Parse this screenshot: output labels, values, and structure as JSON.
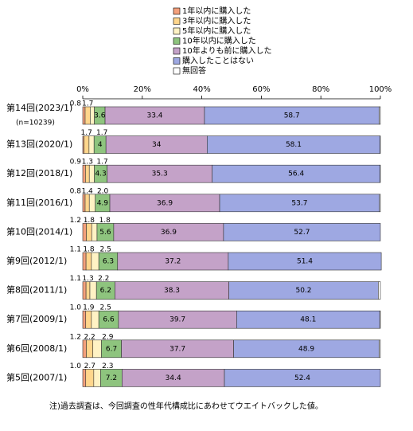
{
  "chart_data": {
    "type": "stacked-barh",
    "categories": [
      "第14回(2023/1)",
      "第13回(2020/1)",
      "第12回(2018/1)",
      "第11回(2016/1)",
      "第10回(2014/1)",
      "第9回(2012/1)",
      "第8回(2011/1)",
      "第7回(2009/1)",
      "第6回(2008/1)",
      "第5回(2007/1)"
    ],
    "sample_note": "(n=10239)",
    "series": [
      {
        "name": "1年以内に購入した",
        "color": "#f4a07c",
        "values": [
          0.8,
          0.4,
          0.9,
          0.8,
          1.2,
          1.1,
          1.1,
          1.0,
          1.2,
          1.0
        ],
        "value_labels": [
          "0.8",
          null,
          "0.9",
          "0.8",
          "1.2",
          "1.1",
          "1.1",
          "1.0",
          "1.2",
          "1.0"
        ]
      },
      {
        "name": "3年以内に購入した",
        "color": "#ffd68c",
        "values": [
          1.7,
          1.7,
          1.3,
          1.4,
          1.8,
          1.8,
          1.3,
          1.9,
          2.2,
          2.7
        ],
        "value_labels": [
          "1.7",
          "1.7",
          "1.3",
          "1.4",
          "1.8",
          "1.8",
          "1.3",
          "1.9",
          "2.2",
          "2.7"
        ]
      },
      {
        "name": "5年以内に購入した",
        "color": "#fff2c4",
        "values": [
          1.4,
          1.7,
          1.7,
          2.0,
          1.8,
          2.5,
          2.2,
          2.5,
          2.9,
          2.3
        ],
        "value_labels": [
          null,
          "1.7",
          "1.7",
          "2.0",
          "1.8",
          "2.5",
          "2.2",
          "2.5",
          "2.9",
          "2.3"
        ]
      },
      {
        "name": "10年以内に購入した",
        "color": "#8ec47e",
        "values": [
          3.6,
          4.0,
          4.3,
          4.9,
          5.6,
          6.3,
          6.2,
          6.6,
          6.7,
          7.2
        ]
      },
      {
        "name": "10年よりも前に購入した",
        "color": "#c4a2c8",
        "values": [
          33.4,
          34.0,
          35.3,
          36.9,
          36.9,
          37.2,
          38.3,
          39.7,
          37.7,
          34.4
        ]
      },
      {
        "name": "購入したことはない",
        "color": "#9ea8e2",
        "values": [
          58.7,
          58.1,
          56.4,
          53.7,
          52.7,
          51.4,
          50.2,
          48.1,
          48.9,
          52.4
        ]
      },
      {
        "name": "無回答",
        "color": "#ffffff",
        "values": [
          0.4,
          0.1,
          0.1,
          0.3,
          0.0,
          0.0,
          0.7,
          0.2,
          0.4,
          0.0
        ]
      }
    ],
    "xlim": [
      0,
      100
    ],
    "xticks": [
      {
        "value": 0,
        "label": "0%"
      },
      {
        "value": 20,
        "label": "20%"
      },
      {
        "value": 40,
        "label": "40%"
      },
      {
        "value": 60,
        "label": "60%"
      },
      {
        "value": 80,
        "label": "80%"
      },
      {
        "value": 100,
        "label": "100%"
      }
    ],
    "note": "注)過去調査は、今回調査の性年代構成比にあわせてウエイトバックした値。"
  }
}
